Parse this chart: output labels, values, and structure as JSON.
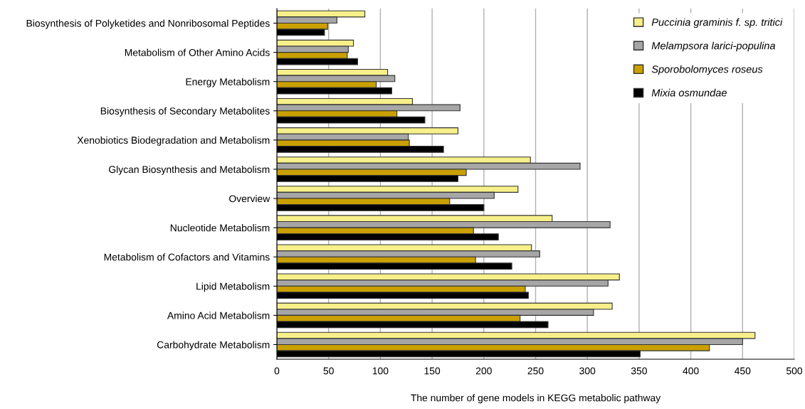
{
  "chart_data": {
    "type": "bar",
    "orientation": "horizontal",
    "xlabel": "The number of gene models in KEGG metabolic pathway",
    "categories": [
      "Biosynthesis of Polyketides and Nonribosomal Peptides",
      "Metabolism of Other Amino Acids",
      "Energy Metabolism",
      "Biosynthesis of Secondary Metabolites",
      "Xenobiotics Biodegradation and Metabolism",
      "Glycan Biosynthesis and Metabolism",
      "Overview",
      "Nucleotide Metabolism",
      "Metabolism of Cofactors and Vitamins",
      "Lipid Metabolism",
      "Amino Acid Metabolism",
      "Carbohydrate Metabolism"
    ],
    "series": [
      {
        "name": "Puccinia graminis f. sp. tritici",
        "color": "#f7f08a",
        "values": [
          85,
          74,
          107,
          131,
          175,
          245,
          233,
          266,
          246,
          331,
          324,
          462
        ]
      },
      {
        "name": "Melampsora larici-populina",
        "color": "#a6a6a6",
        "values": [
          58,
          69,
          114,
          177,
          127,
          293,
          210,
          322,
          254,
          320,
          306,
          450
        ]
      },
      {
        "name": "Sporobolomyces roseus",
        "color": "#c9a000",
        "values": [
          49,
          68,
          96,
          116,
          128,
          183,
          167,
          190,
          192,
          240,
          235,
          418
        ]
      },
      {
        "name": "Mixia osmundae",
        "color": "#000000",
        "values": [
          46,
          78,
          111,
          143,
          161,
          175,
          200,
          214,
          227,
          243,
          262,
          351
        ]
      }
    ],
    "xlim": [
      0,
      500
    ],
    "xticks": [
      0,
      50,
      100,
      150,
      200,
      250,
      300,
      350,
      400,
      450,
      500
    ],
    "grid": "x",
    "legend": "top right"
  }
}
